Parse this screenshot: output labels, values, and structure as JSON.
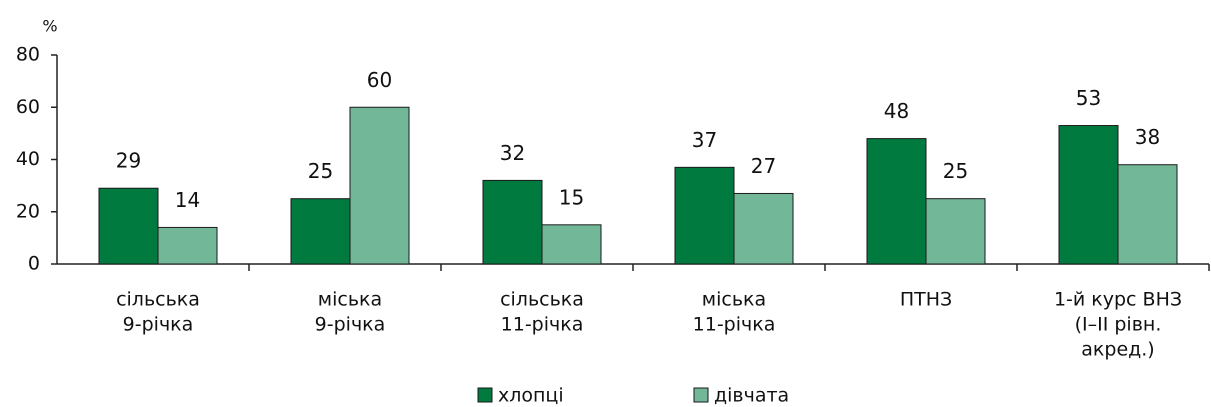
{
  "chart_data": {
    "type": "bar",
    "y_label": "%",
    "categories": [
      [
        "сільська",
        "9-річка"
      ],
      [
        "міська",
        "9-річка"
      ],
      [
        "сільська",
        "11-річка"
      ],
      [
        "міська",
        "11-річка"
      ],
      [
        "ПТНЗ"
      ],
      [
        "1-й курс ВНЗ",
        "(I–II рівн.",
        "акред.)"
      ]
    ],
    "series": [
      {
        "name": "хлопці",
        "color": "#007a3e",
        "values": [
          29,
          25,
          32,
          37,
          48,
          53
        ]
      },
      {
        "name": "дівчата",
        "color": "#73b799",
        "values": [
          14,
          60,
          15,
          27,
          25,
          38
        ]
      }
    ],
    "ylim": [
      0,
      80
    ],
    "yticks": [
      0,
      20,
      40,
      60,
      80
    ]
  }
}
